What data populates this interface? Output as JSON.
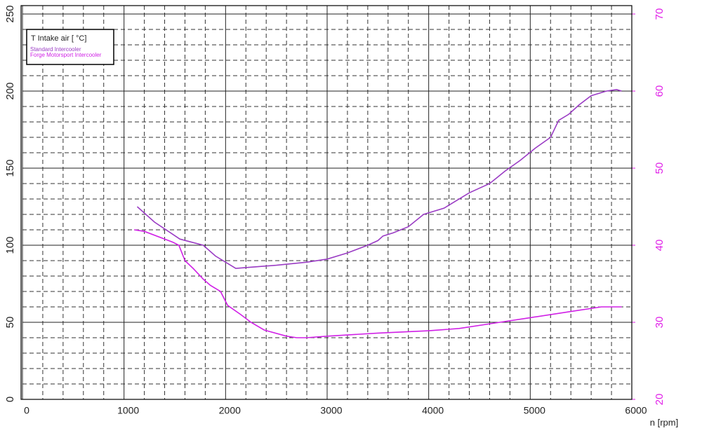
{
  "chart_data": {
    "type": "line",
    "legend_title": "T Intake air [ °C]",
    "x_label": "n [rpm]",
    "xlim": [
      0,
      6000
    ],
    "xticks": [
      0,
      1000,
      2000,
      3000,
      4000,
      5000,
      6000
    ],
    "ylim": [
      0,
      250
    ],
    "yticks": [
      0,
      50,
      100,
      150,
      200,
      250
    ],
    "y2lim": [
      20,
      70
    ],
    "y2ticks": [
      20,
      30,
      40,
      50,
      60,
      70
    ],
    "y2_color": "#e020e8",
    "grid": true,
    "minor_grid": true,
    "legend": "upper left",
    "series": [
      {
        "name": "Standard Intercooler",
        "color": "#9a3cc4",
        "x": [
          1130,
          1300,
          1550,
          1780,
          1900,
          2100,
          2500,
          2800,
          3000,
          3200,
          3400,
          3500,
          3550,
          3650,
          3800,
          3950,
          4150,
          4400,
          4600,
          4750,
          4900,
          5050,
          5200,
          5280,
          5380,
          5480,
          5600,
          5750,
          5850,
          5900
        ],
        "values": [
          125,
          115,
          104,
          100,
          93,
          85,
          87,
          89,
          91,
          95,
          100,
          103,
          106,
          108,
          112,
          120,
          124,
          134,
          140,
          148,
          155,
          163,
          170,
          181,
          185,
          191,
          197,
          200,
          201,
          200
        ]
      },
      {
        "name": "Forge Motorsport Intercooler",
        "color": "#d020e6",
        "x": [
          1100,
          1200,
          1480,
          1540,
          1600,
          1680,
          1780,
          1850,
          1950,
          2020,
          2150,
          2250,
          2380,
          2600,
          2700,
          2800,
          3000,
          3500,
          4000,
          4300,
          4700,
          5000,
          5400,
          5700,
          5850,
          5900
        ],
        "values": [
          110,
          109,
          102,
          100,
          90,
          85,
          78,
          74,
          70,
          61,
          55,
          50,
          45,
          41,
          40,
          40,
          41,
          43,
          44.5,
          46,
          50,
          53,
          57,
          60,
          60,
          60
        ]
      }
    ]
  }
}
